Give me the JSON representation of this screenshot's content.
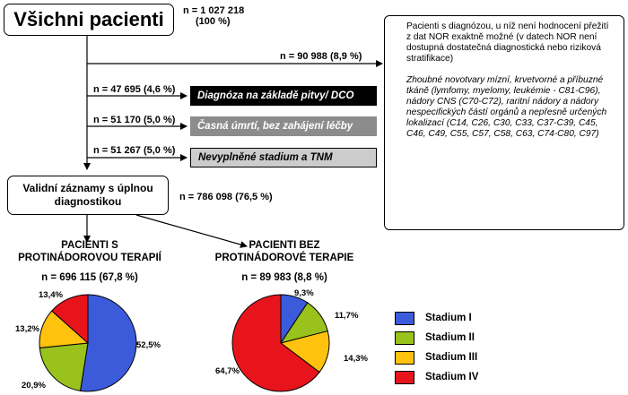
{
  "main": {
    "title": "Všichni pacienti",
    "total": "n = 1 027 218",
    "total_pct": "(100 %)"
  },
  "excluded_note": {
    "count": "n = 90 988 (8,9 %)",
    "paragraph1": "Pacienti s diagnózou, u níž není hodnocení přežití z dat NOR exaktně možné (v datech NOR není dostupná dostatečná diagnostická nebo riziková stratifikace)",
    "paragraph2": "Zhoubné novotvary mízní, krvetvorné a příbuzné tkáně (lymfomy, myelomy, leukémie - C81-C96), nádory CNS (C70-C72), raritní nádory a nádory nespecifických částí orgánů a nepřesně určených lokalizací (C14, C26, C30, C33, C37-C39, C45, C46, C49, C55, C57, C58, C63, C74-C80, C97)"
  },
  "exclusions": [
    {
      "count": "n = 47 695 (4,6 %)",
      "label": "Diagnóza na základě pitvy/ DCO",
      "bg": "#000000",
      "fg": "#ffffff"
    },
    {
      "count": "n = 51 170 (5,0 %)",
      "label": "Časná úmrtí, bez zahájení léčby",
      "bg": "#8c8c8c",
      "fg": "#ffffff"
    },
    {
      "count": "n = 51 267 (5,0 %)",
      "label": "Nevyplněné stadium a TNM",
      "bg": "#cccccc",
      "fg": "#000000"
    }
  ],
  "valid": {
    "line1": "Validní záznamy s úplnou",
    "line2": "diagnostikou",
    "count": "n = 786 098 (76,5 %)"
  },
  "groups": [
    {
      "line1": "PACIENTI S",
      "line2": "PROTINÁDOROVOU TERAPIÍ",
      "count": "n = 696 115 (67,8 %)",
      "labels": [
        "52,5%",
        "20,9%",
        "13,2%",
        "13,4%"
      ]
    },
    {
      "line1": "PACIENTI BEZ",
      "line2": "PROTINÁDOROVÉ TERAPIE",
      "count": "n = 89 983 (8,8 %)",
      "labels": [
        "9,3%",
        "11,7%",
        "14,3%",
        "64,7%"
      ]
    }
  ],
  "chart_data": [
    {
      "type": "pie",
      "title": "",
      "categories": [
        "Stadium I",
        "Stadium II",
        "Stadium III",
        "Stadium IV"
      ],
      "values": [
        52.5,
        20.9,
        13.2,
        13.4
      ]
    },
    {
      "type": "pie",
      "title": "",
      "categories": [
        "Stadium I",
        "Stadium II",
        "Stadium III",
        "Stadium IV"
      ],
      "values": [
        9.3,
        11.7,
        14.3,
        64.7
      ]
    }
  ],
  "legend": [
    {
      "label": "Stadium I",
      "color": "#3b5bdb"
    },
    {
      "label": "Stadium II",
      "color": "#99c21c"
    },
    {
      "label": "Stadium III",
      "color": "#ffc20e"
    },
    {
      "label": "Stadium IV",
      "color": "#e8141c"
    }
  ]
}
